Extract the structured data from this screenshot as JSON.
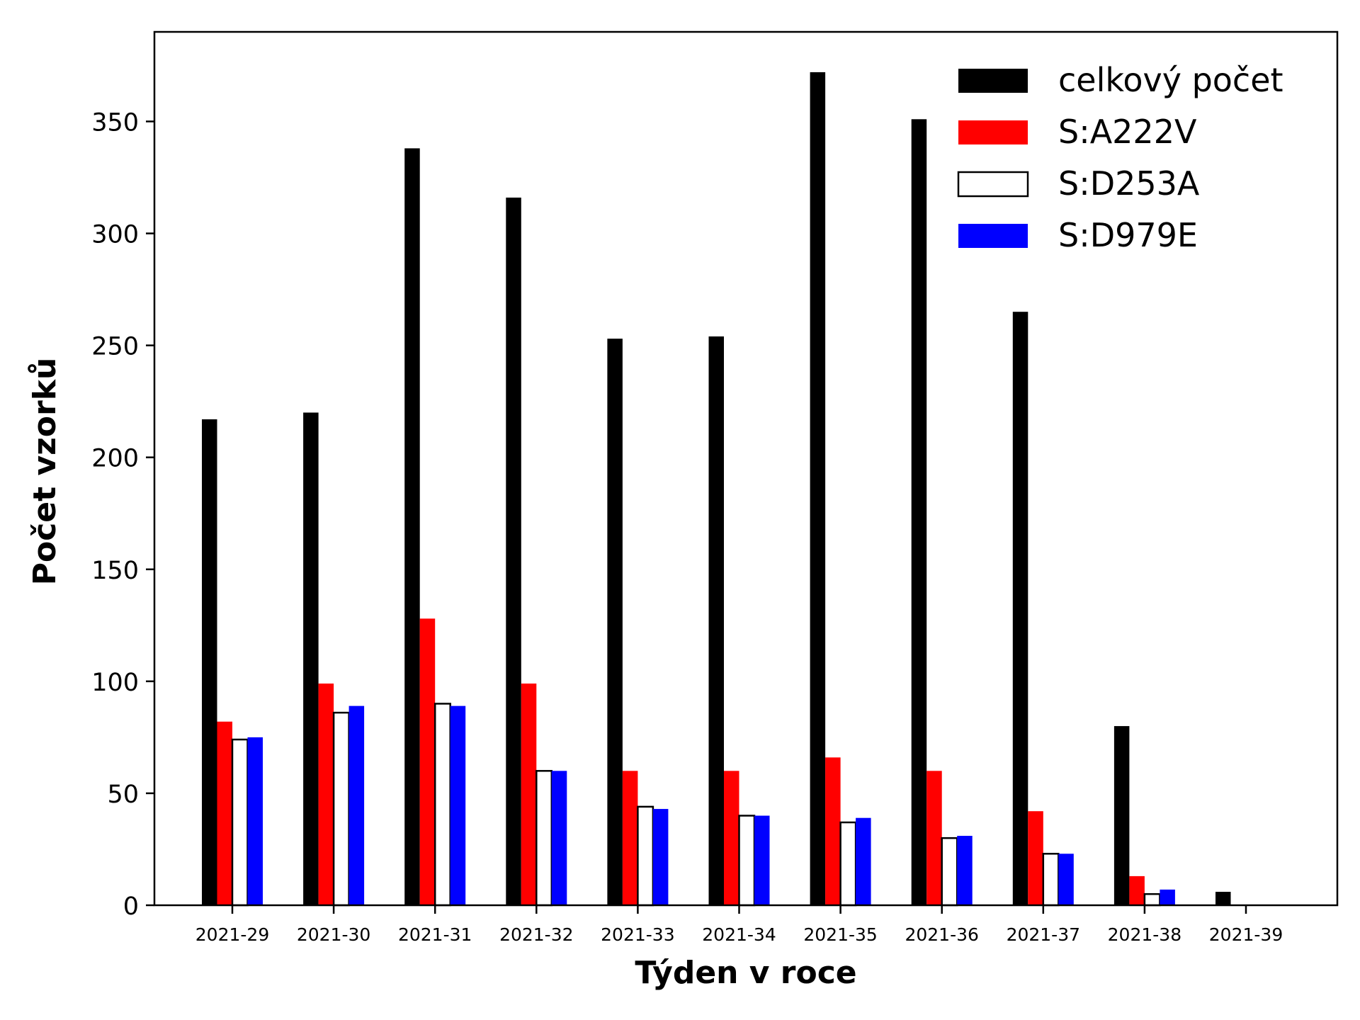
{
  "chart_data": {
    "type": "bar",
    "title": "",
    "xlabel": "Týden v roce",
    "ylabel": "Počet vzorků",
    "ylim": [
      0,
      390
    ],
    "yticks": [
      0,
      50,
      100,
      150,
      200,
      250,
      300,
      350
    ],
    "grid": false,
    "legend_position": "top-right",
    "categories": [
      "2021-29",
      "2021-30",
      "2021-31",
      "2021-32",
      "2021-33",
      "2021-34",
      "2021-35",
      "2021-36",
      "2021-37",
      "2021-38",
      "2021-39"
    ],
    "series": [
      {
        "name": "celkový počet",
        "color": "#000000",
        "hollow": false,
        "values": [
          217,
          220,
          338,
          316,
          253,
          254,
          372,
          351,
          265,
          80,
          6
        ]
      },
      {
        "name": "S:A222V",
        "color": "#ff0000",
        "hollow": false,
        "values": [
          82,
          99,
          128,
          99,
          60,
          60,
          66,
          60,
          42,
          13,
          0
        ]
      },
      {
        "name": "S:D253A",
        "color": "#000000",
        "hollow": true,
        "values": [
          74,
          86,
          90,
          60,
          44,
          40,
          37,
          30,
          23,
          5,
          0
        ]
      },
      {
        "name": "S:D979E",
        "color": "#0000ff",
        "hollow": false,
        "values": [
          75,
          89,
          89,
          60,
          43,
          40,
          39,
          31,
          23,
          7,
          0
        ]
      }
    ]
  }
}
